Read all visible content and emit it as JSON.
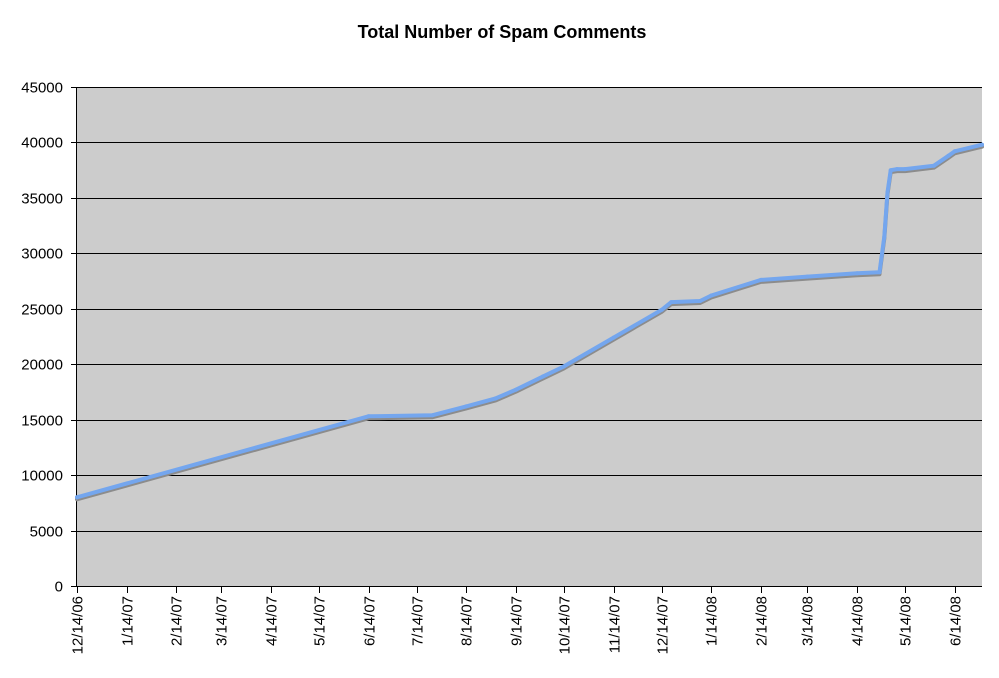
{
  "chart_data": {
    "type": "line",
    "title": "Total Number of Spam Comments",
    "xlabel": "",
    "ylabel": "",
    "ylim": [
      0,
      45000
    ],
    "y_ticks": [
      0,
      5000,
      10000,
      15000,
      20000,
      25000,
      30000,
      35000,
      40000,
      45000
    ],
    "x_ticks": [
      "12/14/06",
      "1/14/07",
      "2/14/07",
      "3/14/07",
      "4/14/07",
      "5/14/07",
      "6/14/07",
      "7/14/07",
      "8/14/07",
      "9/14/07",
      "10/14/07",
      "11/14/07",
      "12/14/07",
      "1/14/08",
      "2/14/08",
      "3/14/08",
      "4/14/08",
      "5/14/08",
      "6/14/08"
    ],
    "x_range": [
      "2006-12-14",
      "2008-07-01"
    ],
    "grid": "horizontal",
    "legend": "none",
    "series": [
      {
        "x": [
          "2006-12-14",
          "2007-06-14",
          "2007-07-24",
          "2007-08-14",
          "2007-09-01",
          "2007-09-14",
          "2007-10-01",
          "2007-10-14",
          "2007-11-14",
          "2007-12-14",
          "2007-12-20",
          "2008-01-07",
          "2008-01-14",
          "2008-02-14",
          "2008-03-14",
          "2008-04-14",
          "2008-04-28",
          "2008-05-01",
          "2008-05-03",
          "2008-05-05",
          "2008-05-09",
          "2008-05-14",
          "2008-06-01",
          "2008-06-10",
          "2008-06-14",
          "2008-07-01"
        ],
        "values": [
          8000,
          15300,
          15400,
          16200,
          16900,
          17700,
          18900,
          19800,
          22400,
          24900,
          25600,
          25700,
          26200,
          27600,
          27900,
          28200,
          28300,
          31500,
          35500,
          37500,
          37600,
          37600,
          37900,
          38800,
          39200,
          39800
        ]
      }
    ],
    "colors": {
      "plot_background": "#cccccc",
      "gridline": "#000000",
      "line": "#74a6ee",
      "line_shadow": "#8c8c8c"
    }
  }
}
